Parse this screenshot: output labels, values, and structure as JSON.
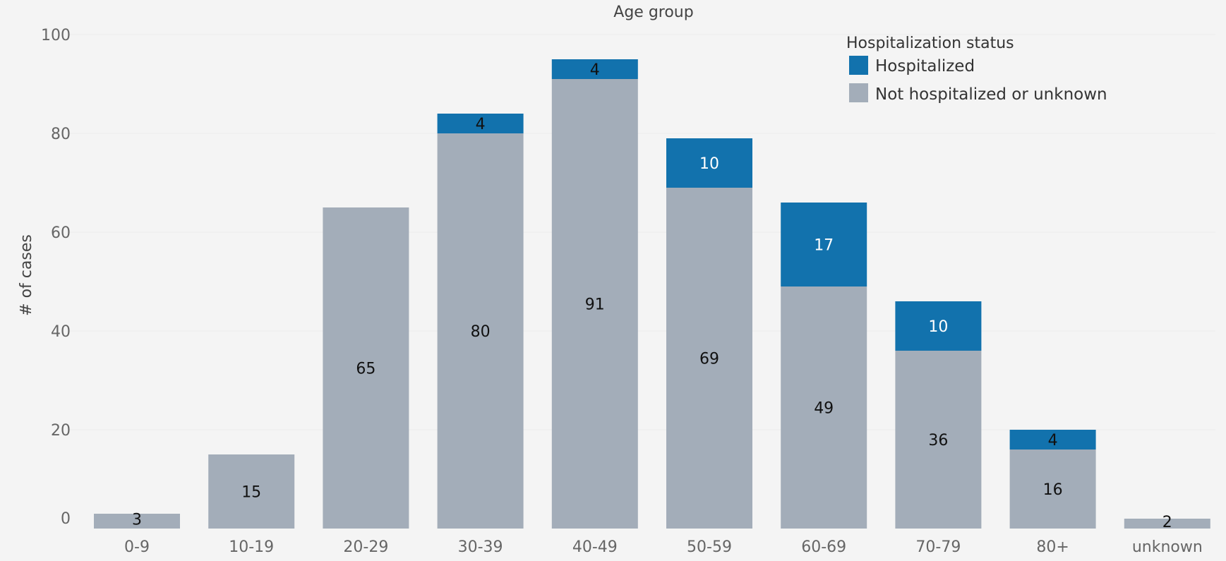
{
  "chart_data": {
    "type": "bar",
    "stacked": true,
    "title": "Age group",
    "xlabel": "",
    "ylabel": "# of cases",
    "ylim": [
      0,
      100
    ],
    "yticks": [
      0,
      20,
      40,
      60,
      80,
      100
    ],
    "grid": true,
    "legend": {
      "title": "Hospitalization status",
      "position": "top-right"
    },
    "categories": [
      "0-9",
      "10-19",
      "20-29",
      "30-39",
      "40-49",
      "50-59",
      "60-69",
      "70-79",
      "80+",
      "unknown"
    ],
    "series": [
      {
        "name": "Not hospitalized or unknown",
        "color": "#a3adb9",
        "values": [
          3,
          15,
          65,
          80,
          91,
          69,
          49,
          36,
          16,
          2
        ]
      },
      {
        "name": "Hospitalized",
        "color": "#1272ad",
        "values": [
          0,
          0,
          0,
          4,
          4,
          10,
          17,
          10,
          4,
          0
        ]
      }
    ]
  }
}
